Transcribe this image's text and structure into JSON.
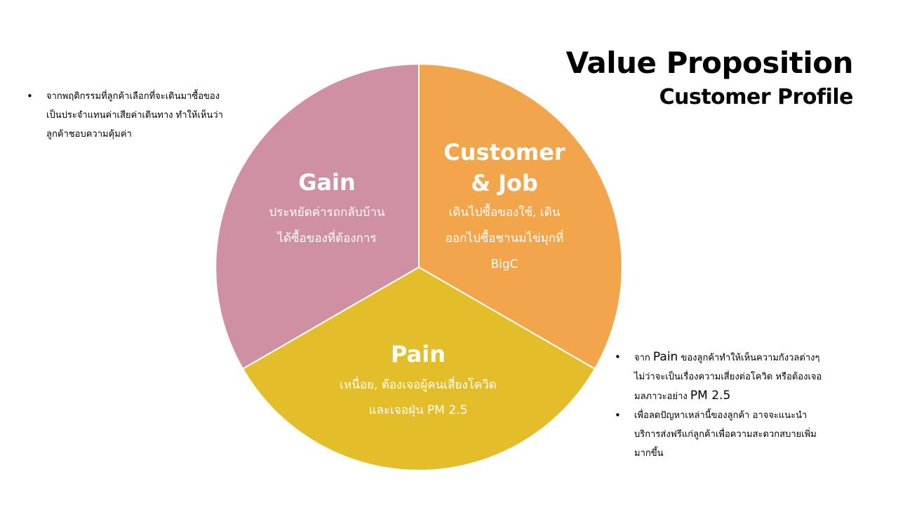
{
  "title": {
    "main": "Value Proposition",
    "sub": "Customer Profile"
  },
  "segments": {
    "gain": {
      "title": "Gain",
      "lines": [
        "ประหยัดค่ารถกลับบ้าน",
        "ได้ซื้อของที่ต้องการ"
      ],
      "color": "#cf90a3"
    },
    "customer_job": {
      "title_lines": [
        "Customer",
        "& Job"
      ],
      "lines": [
        "เดินไปซื้อของใช้, เดิน",
        "ออกไปซื้อชานมไข่มุกที่",
        "BigC"
      ],
      "color": "#f2a54a"
    },
    "pain": {
      "title": "Pain",
      "lines": [
        "เหนื่อย, ต้องเจอผู้คนเสี่ยงโควิด",
        "และเจอฝุ่น PM 2.5"
      ],
      "color": "#e3bd2a"
    }
  },
  "notes_left": [
    {
      "lines": [
        "จากพฤติกรรมที่ลูกค้าเลือกที่จะเดินมาซื้อของ",
        "เป็นประจำแทนค่าเสียค่าเดินทาง ทำให้เห็นว่า",
        "ลูกค้าชอบความคุ้มค่า"
      ]
    }
  ],
  "notes_right": [
    {
      "line1_prefix": "จาก ",
      "line1_emph": "Pain",
      "line1_suffix": " ของลูกค้าทำให้เห็นความกังวลต่างๆ",
      "line2": "ไม่ว่าจะเป็นเรื่องความเสี่ยงต่อโควิด หรือต้องเจอ",
      "line3_prefix": "มลภาวะอย่าง ",
      "line3_emph": "PM 2.5"
    },
    {
      "lines": [
        "เพื่อลดปัญหาเหล่านี้ของลูกค้า อาจจะแนะนำ",
        "บริการส่งฟรีแก่ลูกค้าเพื่อความสะดวกสบายเพิ่ม",
        "มากขึ้น"
      ]
    }
  ]
}
